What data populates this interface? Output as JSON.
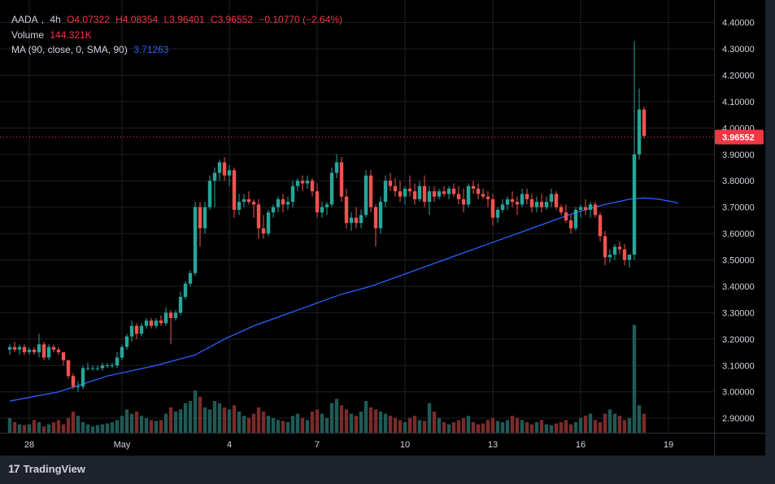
{
  "legend": {
    "symbol": "AADA",
    "interval": "4h",
    "open": "O4.07322",
    "high": "H4.08354",
    "low": "L3.96401",
    "close": "C3.96552",
    "change": "−0.10770 (−2.64%)",
    "volume_label": "Volume",
    "volume_value": "144.321K",
    "ma_label": "MA (90, close, 0, SMA, 90)",
    "ma_value": "3.71263"
  },
  "brand": "TradingView",
  "colors": {
    "up": "#26a69a",
    "down": "#ef5350",
    "ma": "#2962ff",
    "price_tag": "#f23645"
  },
  "chart_data": {
    "type": "candlestick",
    "y_ticks": [
      "4.40000",
      "4.30000",
      "4.20000",
      "4.10000",
      "4.00000",
      "3.90000",
      "3.80000",
      "3.70000",
      "3.60000",
      "3.50000",
      "3.40000",
      "3.30000",
      "3.20000",
      "3.10000",
      "3.00000",
      "2.90000"
    ],
    "ylim": [
      2.845,
      4.485
    ],
    "x_ticks": [
      {
        "label": "28",
        "index": 4
      },
      {
        "label": "May",
        "index": 23
      },
      {
        "label": "4",
        "index": 45
      },
      {
        "label": "7",
        "index": 63
      },
      {
        "label": "10",
        "index": 81
      },
      {
        "label": "13",
        "index": 99
      },
      {
        "label": "16",
        "index": 117
      },
      {
        "label": "19",
        "index": 135
      }
    ],
    "last_price": "3.96552",
    "last_price_value": 3.96552,
    "candles": [
      [
        3.16,
        3.18,
        3.14,
        3.17
      ],
      [
        3.17,
        3.19,
        3.15,
        3.16
      ],
      [
        3.16,
        3.18,
        3.14,
        3.17
      ],
      [
        3.17,
        3.18,
        3.14,
        3.15
      ],
      [
        3.15,
        3.17,
        3.14,
        3.16
      ],
      [
        3.16,
        3.17,
        3.14,
        3.15
      ],
      [
        3.15,
        3.22,
        3.13,
        3.18
      ],
      [
        3.18,
        3.19,
        3.12,
        3.13
      ],
      [
        3.13,
        3.18,
        3.12,
        3.17
      ],
      [
        3.17,
        3.18,
        3.15,
        3.16
      ],
      [
        3.16,
        3.17,
        3.14,
        3.15
      ],
      [
        3.15,
        3.15,
        3.1,
        3.12
      ],
      [
        3.12,
        3.12,
        3.05,
        3.06
      ],
      [
        3.06,
        3.07,
        3.01,
        3.02
      ],
      [
        3.02,
        3.04,
        3.0,
        3.02
      ],
      [
        3.02,
        3.1,
        3.01,
        3.09
      ],
      [
        3.09,
        3.11,
        3.08,
        3.09
      ],
      [
        3.09,
        3.1,
        3.08,
        3.09
      ],
      [
        3.09,
        3.1,
        3.08,
        3.09
      ],
      [
        3.09,
        3.11,
        3.08,
        3.1
      ],
      [
        3.1,
        3.11,
        3.09,
        3.1
      ],
      [
        3.1,
        3.11,
        3.09,
        3.1
      ],
      [
        3.1,
        3.15,
        3.09,
        3.13
      ],
      [
        3.13,
        3.18,
        3.12,
        3.17
      ],
      [
        3.17,
        3.22,
        3.16,
        3.21
      ],
      [
        3.21,
        3.27,
        3.19,
        3.25
      ],
      [
        3.25,
        3.26,
        3.2,
        3.22
      ],
      [
        3.22,
        3.26,
        3.21,
        3.25
      ],
      [
        3.25,
        3.28,
        3.24,
        3.27
      ],
      [
        3.27,
        3.28,
        3.24,
        3.25
      ],
      [
        3.25,
        3.28,
        3.24,
        3.27
      ],
      [
        3.27,
        3.29,
        3.25,
        3.26
      ],
      [
        3.26,
        3.32,
        3.25,
        3.3
      ],
      [
        3.3,
        3.31,
        3.18,
        3.28
      ],
      [
        3.28,
        3.31,
        3.27,
        3.3
      ],
      [
        3.3,
        3.38,
        3.29,
        3.36
      ],
      [
        3.36,
        3.42,
        3.35,
        3.41
      ],
      [
        3.41,
        3.46,
        3.4,
        3.45
      ],
      [
        3.45,
        3.72,
        3.44,
        3.7
      ],
      [
        3.7,
        3.72,
        3.55,
        3.62
      ],
      [
        3.62,
        3.72,
        3.6,
        3.7
      ],
      [
        3.7,
        3.82,
        3.69,
        3.8
      ],
      [
        3.8,
        3.85,
        3.7,
        3.83
      ],
      [
        3.83,
        3.88,
        3.8,
        3.87
      ],
      [
        3.87,
        3.89,
        3.8,
        3.82
      ],
      [
        3.82,
        3.86,
        3.78,
        3.84
      ],
      [
        3.84,
        3.85,
        3.66,
        3.69
      ],
      [
        3.69,
        3.75,
        3.67,
        3.72
      ],
      [
        3.72,
        3.75,
        3.7,
        3.73
      ],
      [
        3.73,
        3.76,
        3.71,
        3.72
      ],
      [
        3.72,
        3.73,
        3.66,
        3.71
      ],
      [
        3.71,
        3.73,
        3.58,
        3.62
      ],
      [
        3.62,
        3.67,
        3.58,
        3.6
      ],
      [
        3.6,
        3.69,
        3.59,
        3.68
      ],
      [
        3.68,
        3.71,
        3.66,
        3.7
      ],
      [
        3.7,
        3.74,
        3.68,
        3.73
      ],
      [
        3.73,
        3.75,
        3.68,
        3.71
      ],
      [
        3.71,
        3.74,
        3.69,
        3.72
      ],
      [
        3.72,
        3.8,
        3.7,
        3.78
      ],
      [
        3.78,
        3.81,
        3.76,
        3.8
      ],
      [
        3.8,
        3.82,
        3.76,
        3.79
      ],
      [
        3.79,
        3.82,
        3.77,
        3.8
      ],
      [
        3.8,
        3.81,
        3.74,
        3.76
      ],
      [
        3.76,
        3.79,
        3.66,
        3.68
      ],
      [
        3.68,
        3.72,
        3.66,
        3.7
      ],
      [
        3.7,
        3.72,
        3.67,
        3.71
      ],
      [
        3.71,
        3.85,
        3.7,
        3.83
      ],
      [
        3.83,
        3.9,
        3.81,
        3.87
      ],
      [
        3.87,
        3.89,
        3.72,
        3.74
      ],
      [
        3.74,
        3.77,
        3.62,
        3.64
      ],
      [
        3.64,
        3.68,
        3.61,
        3.66
      ],
      [
        3.66,
        3.7,
        3.62,
        3.64
      ],
      [
        3.64,
        3.69,
        3.62,
        3.67
      ],
      [
        3.67,
        3.84,
        3.66,
        3.82
      ],
      [
        3.82,
        3.84,
        3.68,
        3.7
      ],
      [
        3.7,
        3.71,
        3.55,
        3.62
      ],
      [
        3.62,
        3.74,
        3.6,
        3.72
      ],
      [
        3.72,
        3.82,
        3.7,
        3.8
      ],
      [
        3.8,
        3.83,
        3.76,
        3.78
      ],
      [
        3.78,
        3.81,
        3.74,
        3.76
      ],
      [
        3.76,
        3.8,
        3.72,
        3.74
      ],
      [
        3.74,
        3.78,
        3.71,
        3.77
      ],
      [
        3.77,
        3.82,
        3.74,
        3.76
      ],
      [
        3.76,
        3.79,
        3.71,
        3.73
      ],
      [
        3.73,
        3.8,
        3.72,
        3.78
      ],
      [
        3.78,
        3.82,
        3.7,
        3.72
      ],
      [
        3.72,
        3.78,
        3.67,
        3.76
      ],
      [
        3.76,
        3.78,
        3.72,
        3.74
      ],
      [
        3.74,
        3.77,
        3.73,
        3.76
      ],
      [
        3.76,
        3.78,
        3.74,
        3.75
      ],
      [
        3.75,
        3.78,
        3.73,
        3.77
      ],
      [
        3.77,
        3.79,
        3.74,
        3.75
      ],
      [
        3.75,
        3.78,
        3.71,
        3.73
      ],
      [
        3.73,
        3.77,
        3.68,
        3.71
      ],
      [
        3.71,
        3.79,
        3.7,
        3.78
      ],
      [
        3.78,
        3.8,
        3.75,
        3.77
      ],
      [
        3.77,
        3.79,
        3.73,
        3.75
      ],
      [
        3.75,
        3.77,
        3.73,
        3.74
      ],
      [
        3.74,
        3.76,
        3.7,
        3.73
      ],
      [
        3.73,
        3.75,
        3.63,
        3.66
      ],
      [
        3.66,
        3.7,
        3.64,
        3.69
      ],
      [
        3.69,
        3.73,
        3.68,
        3.71
      ],
      [
        3.71,
        3.74,
        3.69,
        3.73
      ],
      [
        3.73,
        3.76,
        3.7,
        3.72
      ],
      [
        3.72,
        3.74,
        3.67,
        3.71
      ],
      [
        3.71,
        3.77,
        3.7,
        3.75
      ],
      [
        3.75,
        3.77,
        3.71,
        3.73
      ],
      [
        3.73,
        3.75,
        3.68,
        3.7
      ],
      [
        3.7,
        3.74,
        3.68,
        3.72
      ],
      [
        3.72,
        3.75,
        3.68,
        3.7
      ],
      [
        3.7,
        3.74,
        3.69,
        3.72
      ],
      [
        3.72,
        3.77,
        3.7,
        3.75
      ],
      [
        3.75,
        3.76,
        3.69,
        3.7
      ],
      [
        3.7,
        3.71,
        3.67,
        3.68
      ],
      [
        3.68,
        3.71,
        3.64,
        3.65
      ],
      [
        3.65,
        3.67,
        3.6,
        3.62
      ],
      [
        3.62,
        3.7,
        3.61,
        3.69
      ],
      [
        3.69,
        3.71,
        3.66,
        3.7
      ],
      [
        3.7,
        3.73,
        3.67,
        3.69
      ],
      [
        3.69,
        3.72,
        3.66,
        3.71
      ],
      [
        3.71,
        3.72,
        3.66,
        3.67
      ],
      [
        3.67,
        3.68,
        3.57,
        3.59
      ],
      [
        3.59,
        3.61,
        3.48,
        3.51
      ],
      [
        3.51,
        3.54,
        3.49,
        3.52
      ],
      [
        3.52,
        3.56,
        3.5,
        3.55
      ],
      [
        3.55,
        3.57,
        3.52,
        3.54
      ],
      [
        3.54,
        3.56,
        3.48,
        3.5
      ],
      [
        3.5,
        3.52,
        3.47,
        3.52
      ],
      [
        3.52,
        4.33,
        3.5,
        3.9
      ],
      [
        3.9,
        4.15,
        3.88,
        4.07
      ],
      [
        4.07,
        4.08,
        3.96,
        3.97
      ]
    ],
    "ma90": [
      [
        0,
        2.965
      ],
      [
        10,
        3.0
      ],
      [
        20,
        3.06
      ],
      [
        30,
        3.1
      ],
      [
        38,
        3.14
      ],
      [
        44,
        3.2
      ],
      [
        50,
        3.25
      ],
      [
        56,
        3.29
      ],
      [
        62,
        3.33
      ],
      [
        68,
        3.37
      ],
      [
        74,
        3.4
      ],
      [
        80,
        3.44
      ],
      [
        86,
        3.48
      ],
      [
        92,
        3.52
      ],
      [
        98,
        3.56
      ],
      [
        104,
        3.6
      ],
      [
        110,
        3.64
      ],
      [
        116,
        3.68
      ],
      [
        122,
        3.71
      ],
      [
        127,
        3.73
      ],
      [
        130,
        3.735
      ],
      [
        133,
        3.73
      ],
      [
        136,
        3.72
      ],
      [
        137,
        3.715
      ]
    ],
    "volumes": [
      0.35,
      0.25,
      0.2,
      0.18,
      0.2,
      0.3,
      0.25,
      0.15,
      0.2,
      0.25,
      0.3,
      0.2,
      0.35,
      0.5,
      0.4,
      0.25,
      0.2,
      0.15,
      0.18,
      0.2,
      0.22,
      0.25,
      0.3,
      0.4,
      0.55,
      0.45,
      0.5,
      0.4,
      0.35,
      0.3,
      0.28,
      0.3,
      0.45,
      0.6,
      0.5,
      0.55,
      0.7,
      0.75,
      1.0,
      0.85,
      0.6,
      0.55,
      0.75,
      0.7,
      0.6,
      0.55,
      0.65,
      0.5,
      0.4,
      0.35,
      0.45,
      0.6,
      0.5,
      0.4,
      0.35,
      0.3,
      0.28,
      0.25,
      0.4,
      0.45,
      0.35,
      0.3,
      0.5,
      0.55,
      0.45,
      0.35,
      0.7,
      0.8,
      0.65,
      0.55,
      0.45,
      0.4,
      0.5,
      0.75,
      0.6,
      0.55,
      0.5,
      0.45,
      0.4,
      0.35,
      0.3,
      0.25,
      0.35,
      0.4,
      0.3,
      0.28,
      0.7,
      0.5,
      0.35,
      0.25,
      0.2,
      0.25,
      0.3,
      0.35,
      0.4,
      0.25,
      0.2,
      0.22,
      0.3,
      0.35,
      0.28,
      0.25,
      0.3,
      0.4,
      0.35,
      0.3,
      0.25,
      0.2,
      0.25,
      0.3,
      0.2,
      0.18,
      0.22,
      0.25,
      0.3,
      0.2,
      0.25,
      0.35,
      0.4,
      0.45,
      0.3,
      0.25,
      0.45,
      0.55,
      0.45,
      0.4,
      0.3,
      0.35,
      2.55,
      0.65,
      0.45
    ]
  }
}
